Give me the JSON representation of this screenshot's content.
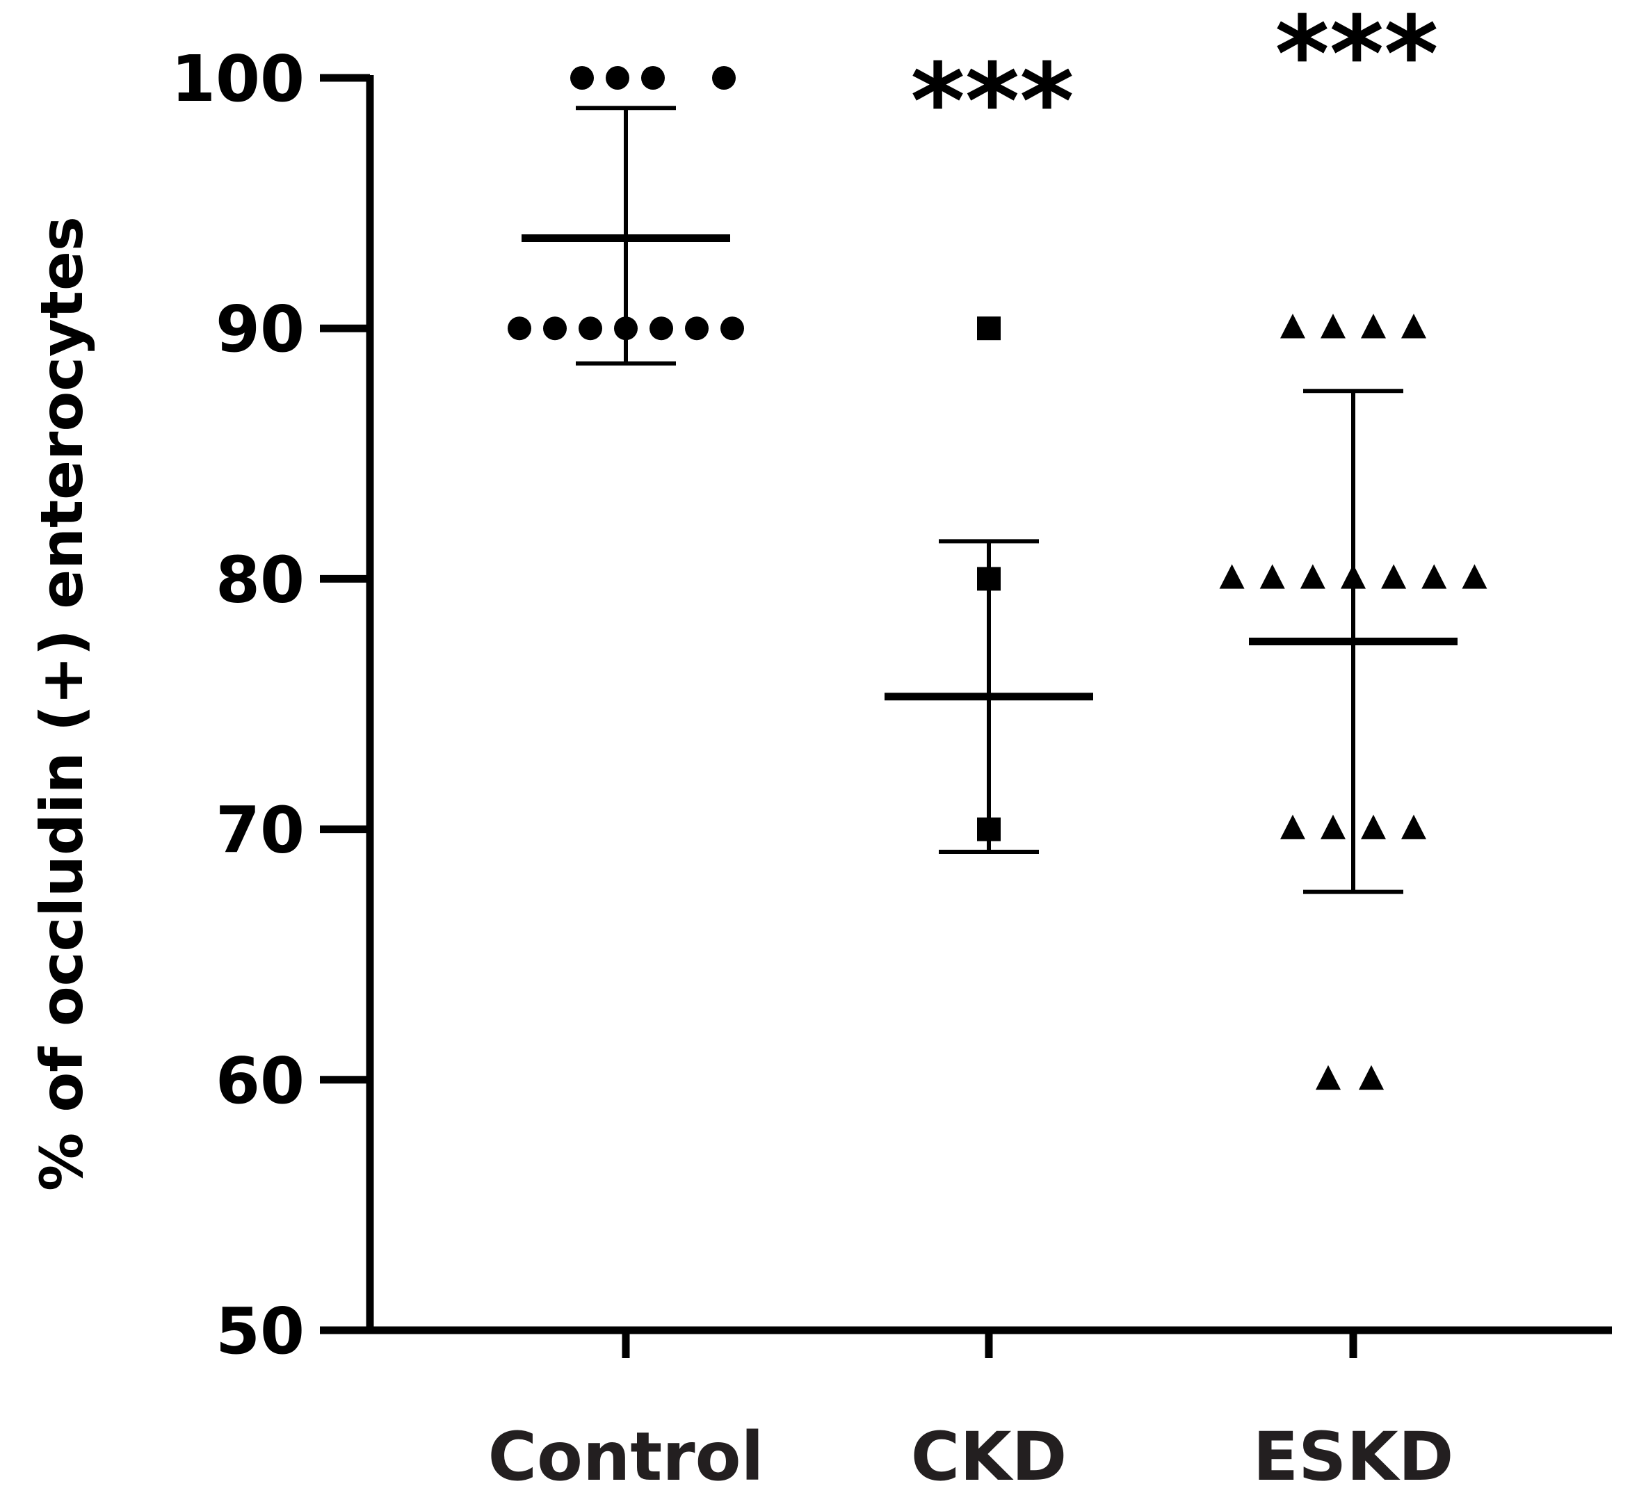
{
  "chart_data": {
    "type": "scatter",
    "title": "",
    "xlabel": "",
    "ylabel": "% of occludin (+) enterocytes",
    "ylim": [
      50,
      100
    ],
    "yticks": [
      50,
      60,
      70,
      80,
      90,
      100
    ],
    "ytick_labels": [
      "50",
      "60",
      "70",
      "80",
      "90",
      "100"
    ],
    "categories": [
      "Control",
      "CKD",
      "ESKD"
    ],
    "series": [
      {
        "name": "Control",
        "marker": "circle",
        "points": [
          100,
          100,
          100,
          100,
          90,
          90,
          90,
          90,
          90,
          90,
          90
        ],
        "mean": 93.6,
        "sd_upper": 98.8,
        "sd_lower": 88.6,
        "significance": ""
      },
      {
        "name": "CKD",
        "marker": "square",
        "points": [
          90,
          80,
          70
        ],
        "mean": 75.3,
        "sd_upper": 81.5,
        "sd_lower": 69.1,
        "significance": "***"
      },
      {
        "name": "ESKD",
        "marker": "triangle",
        "points": [
          90,
          90,
          90,
          90,
          80,
          80,
          80,
          80,
          80,
          80,
          80,
          70,
          70,
          70,
          70,
          60,
          60
        ],
        "mean": 77.5,
        "sd_upper": 87.5,
        "sd_lower": 67.5,
        "significance": "***"
      }
    ],
    "colors": {
      "marks": "#000000",
      "category_text": "#231f20",
      "background": "#ffffff"
    }
  }
}
